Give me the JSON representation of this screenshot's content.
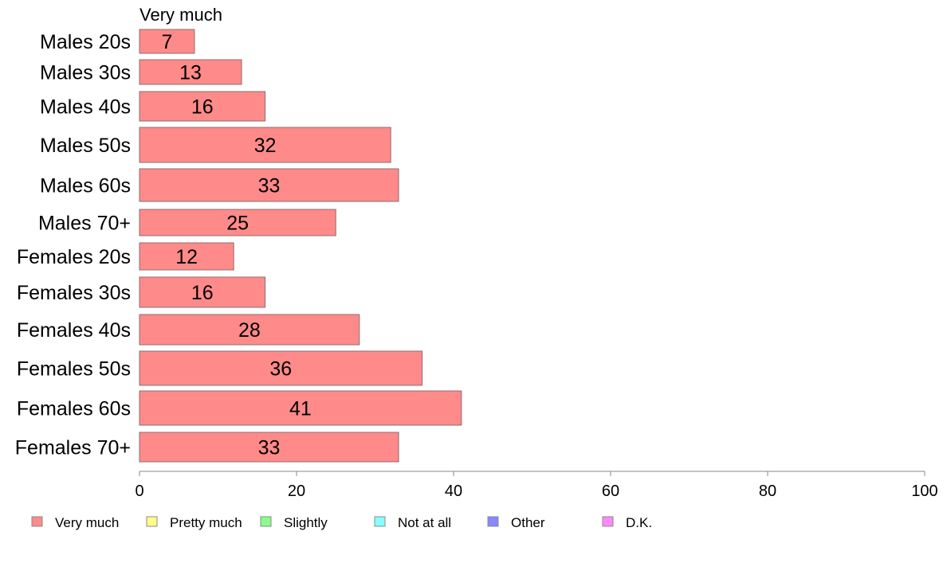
{
  "chart_data": {
    "type": "bar",
    "orientation": "horizontal",
    "stacked": true,
    "series_title": "Very much",
    "categories": [
      "Males 20s",
      "Males 30s",
      "Males 40s",
      "Males 50s",
      "Males 60s",
      "Males 70+",
      "Females 20s",
      "Females 30s",
      "Females 40s",
      "Females 50s",
      "Females 60s",
      "Females 70+"
    ],
    "series": [
      {
        "name": "Very much",
        "color": "#ff8a8a",
        "values": [
          7,
          13,
          16,
          32,
          33,
          25,
          12,
          16,
          28,
          36,
          41,
          33
        ]
      }
    ],
    "value_labels": [
      "7",
      "13",
      "16",
      "32",
      "33",
      "25",
      "12",
      "16",
      "28",
      "36",
      "41",
      "33"
    ],
    "xlim": [
      0,
      100
    ],
    "xticks": [
      0,
      20,
      40,
      60,
      80,
      100
    ],
    "xtick_labels": [
      "0",
      "20",
      "40",
      "60",
      "80",
      "100"
    ],
    "grid": false,
    "legend_position": "bottom",
    "legend": [
      {
        "label": "Very much",
        "color": "#ff8a8a"
      },
      {
        "label": "Pretty much",
        "color": "#ffff88"
      },
      {
        "label": "Slightly",
        "color": "#88ff88"
      },
      {
        "label": "Not at all",
        "color": "#88ffff"
      },
      {
        "label": "Other",
        "color": "#8888ff"
      },
      {
        "label": "D.K.",
        "color": "#ff88ff"
      }
    ]
  }
}
